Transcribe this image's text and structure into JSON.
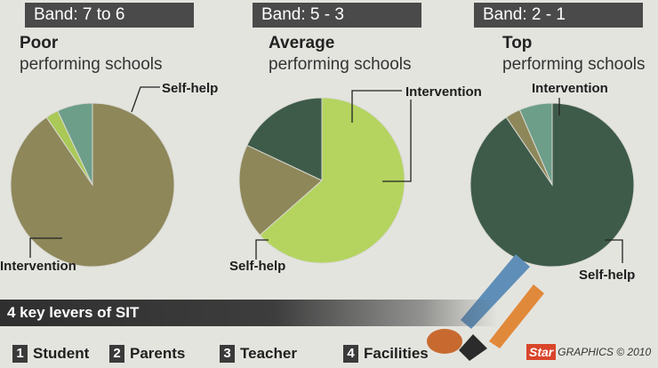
{
  "chart_data": [
    {
      "type": "pie",
      "band": "Band: 7 to 6",
      "title_bold": "Poor",
      "title_rest": "performing schools",
      "slices": [
        {
          "label": "Intervention",
          "value": 90.5,
          "color": "#8e875a"
        },
        {
          "label": "",
          "value": 2.5,
          "color": "#aac957"
        },
        {
          "label": "Self-help",
          "value": 7.0,
          "color": "#6d9e8a"
        }
      ]
    },
    {
      "type": "pie",
      "band": "Band: 5 - 3",
      "title_bold": "Average",
      "title_rest": "performing schools",
      "slices": [
        {
          "label": "Self-help",
          "value": 63.5,
          "color": "#b4d45f"
        },
        {
          "label": "Intervention",
          "value": 18.5,
          "color": "#8e875a"
        },
        {
          "label": "",
          "value": 18.0,
          "color": "#3e5b4a"
        }
      ]
    },
    {
      "type": "pie",
      "band": "Band: 2 - 1",
      "title_bold": "Top",
      "title_rest": "performing schools",
      "slices": [
        {
          "label": "Self-help",
          "value": 90.5,
          "color": "#3e5b4a"
        },
        {
          "label": "Intervention",
          "value": 3.0,
          "color": "#8e875a"
        },
        {
          "label": "",
          "value": 6.5,
          "color": "#6d9e8a"
        }
      ]
    }
  ],
  "levers": {
    "title": "4 key levers of SIT",
    "items": [
      {
        "num": "1",
        "label": "Student"
      },
      {
        "num": "2",
        "label": "Parents"
      },
      {
        "num": "3",
        "label": "Teacher"
      },
      {
        "num": "4",
        "label": "Facilities"
      }
    ]
  },
  "credit": {
    "logo": "Star",
    "text": "GRAPHICS © 2010"
  }
}
